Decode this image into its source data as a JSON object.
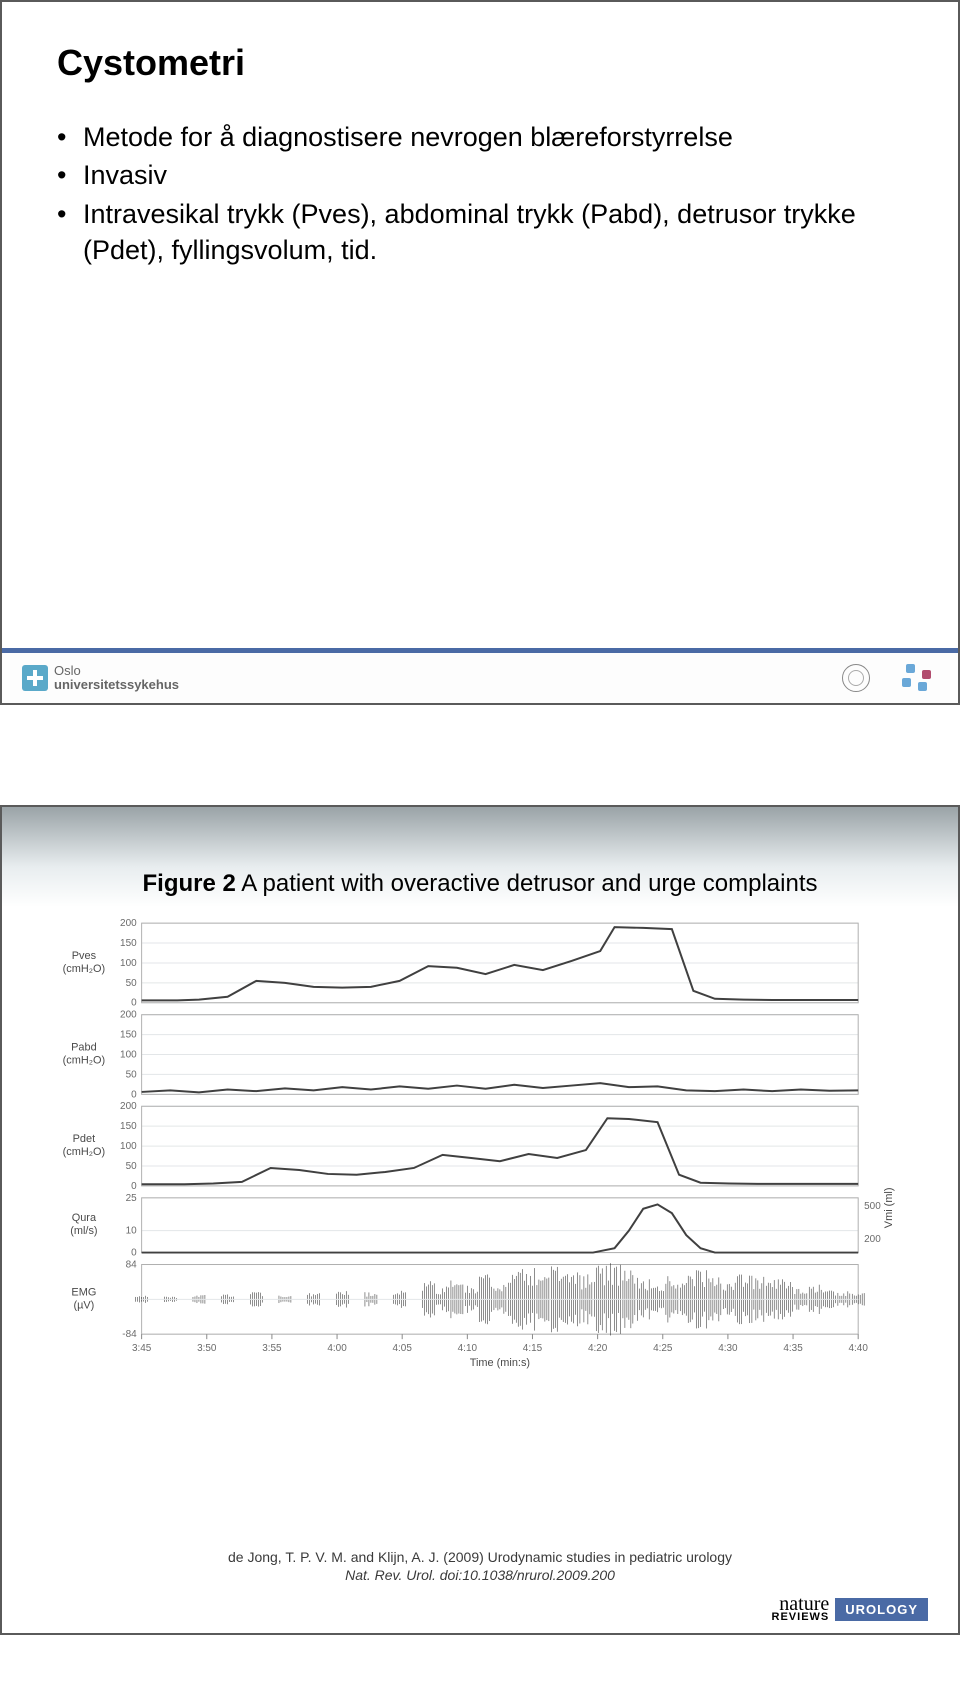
{
  "slide1": {
    "title": "Cystometri",
    "bullets": [
      "Metode for å diagnostisere nevrogen blæreforstyrrelse",
      "Invasiv",
      "Intravesikal trykk (Pves), abdominal trykk (Pabd), detrusor trykke (Pdet), fyllingsvolum, tid."
    ],
    "footer": {
      "org_line1": "Oslo",
      "org_line2": "universitetssykehus",
      "accent_color": "#4a6aa5"
    }
  },
  "slide2": {
    "caption_bold": "Figure 2",
    "caption_rest": " A patient with overactive detrusor and urge complaints",
    "citation_line1": "de Jong, T. P. V. M. and Klijn, A. J. (2009) Urodynamic studies in pediatric urology",
    "citation_line2": "Nat. Rev. Urol. doi:10.1038/nrurol.2009.200",
    "nature": {
      "top": "nature",
      "reviews": "REVIEWS",
      "badge": "UROLOGY"
    },
    "badge_bg": "#4a6aa5",
    "chart": {
      "x_ticks": [
        "3:45",
        "3:50",
        "3:55",
        "4:00",
        "4:05",
        "4:10",
        "4:15",
        "4:20",
        "4:25",
        "4:30",
        "4:35",
        "4:40"
      ],
      "x_label": "Time (min:s)",
      "panels": [
        {
          "ylabel": "Pves (cmH₂O)",
          "range": [
            0,
            200
          ],
          "y_ticks": [
            0,
            50,
            100,
            150,
            200
          ],
          "trace": [
            [
              0,
              6
            ],
            [
              5,
              6
            ],
            [
              8,
              8
            ],
            [
              12,
              15
            ],
            [
              16,
              55
            ],
            [
              20,
              50
            ],
            [
              24,
              40
            ],
            [
              28,
              38
            ],
            [
              32,
              40
            ],
            [
              36,
              55
            ],
            [
              40,
              92
            ],
            [
              44,
              88
            ],
            [
              48,
              72
            ],
            [
              52,
              95
            ],
            [
              56,
              82
            ],
            [
              60,
              105
            ],
            [
              64,
              130
            ],
            [
              66,
              190
            ],
            [
              70,
              188
            ],
            [
              74,
              185
            ],
            [
              77,
              30
            ],
            [
              80,
              10
            ],
            [
              84,
              8
            ],
            [
              88,
              7
            ],
            [
              92,
              7
            ],
            [
              96,
              7
            ],
            [
              100,
              7
            ]
          ],
          "right_axis": null
        },
        {
          "ylabel": "Pabd (cmH₂O)",
          "range": [
            0,
            200
          ],
          "y_ticks": [
            0,
            50,
            100,
            150,
            200
          ],
          "trace": [
            [
              0,
              6
            ],
            [
              4,
              10
            ],
            [
              8,
              5
            ],
            [
              12,
              12
            ],
            [
              16,
              8
            ],
            [
              20,
              15
            ],
            [
              24,
              10
            ],
            [
              28,
              18
            ],
            [
              32,
              12
            ],
            [
              36,
              20
            ],
            [
              40,
              14
            ],
            [
              44,
              22
            ],
            [
              48,
              14
            ],
            [
              52,
              24
            ],
            [
              56,
              16
            ],
            [
              60,
              22
            ],
            [
              64,
              28
            ],
            [
              68,
              18
            ],
            [
              72,
              20
            ],
            [
              76,
              10
            ],
            [
              80,
              8
            ],
            [
              84,
              12
            ],
            [
              88,
              8
            ],
            [
              92,
              12
            ],
            [
              96,
              9
            ],
            [
              100,
              10
            ]
          ],
          "right_axis": null
        },
        {
          "ylabel": "Pdet (cmH₂O)",
          "range": [
            0,
            200
          ],
          "y_ticks": [
            0,
            50,
            100,
            150,
            200
          ],
          "trace": [
            [
              0,
              4
            ],
            [
              6,
              4
            ],
            [
              10,
              6
            ],
            [
              14,
              10
            ],
            [
              18,
              45
            ],
            [
              22,
              40
            ],
            [
              26,
              30
            ],
            [
              30,
              28
            ],
            [
              34,
              35
            ],
            [
              38,
              45
            ],
            [
              42,
              78
            ],
            [
              46,
              70
            ],
            [
              50,
              62
            ],
            [
              54,
              80
            ],
            [
              58,
              70
            ],
            [
              62,
              90
            ],
            [
              65,
              170
            ],
            [
              68,
              168
            ],
            [
              72,
              160
            ],
            [
              75,
              28
            ],
            [
              78,
              8
            ],
            [
              82,
              6
            ],
            [
              86,
              5
            ],
            [
              90,
              5
            ],
            [
              96,
              5
            ],
            [
              100,
              5
            ]
          ],
          "right_axis": null
        },
        {
          "ylabel": "Qura (ml/s)",
          "range": [
            0,
            25
          ],
          "y_ticks": [
            0,
            10,
            25
          ],
          "trace": [
            [
              0,
              0
            ],
            [
              60,
              0
            ],
            [
              63,
              0
            ],
            [
              66,
              2
            ],
            [
              68,
              10
            ],
            [
              70,
              20
            ],
            [
              72,
              22
            ],
            [
              74,
              18
            ],
            [
              76,
              8
            ],
            [
              78,
              2
            ],
            [
              80,
              0
            ],
            [
              100,
              0
            ]
          ],
          "right_axis": {
            "label": "Vmi (ml)",
            "ticks": [
              200,
              500
            ]
          }
        },
        {
          "ylabel": "EMG (µV)",
          "range": [
            -84,
            84
          ],
          "y_ticks": [
            -84,
            84
          ],
          "emg_envelope": [
            [
              0,
              8
            ],
            [
              4,
              6
            ],
            [
              8,
              10
            ],
            [
              12,
              12
            ],
            [
              16,
              18
            ],
            [
              20,
              10
            ],
            [
              24,
              14
            ],
            [
              28,
              20
            ],
            [
              32,
              16
            ],
            [
              36,
              22
            ],
            [
              40,
              40
            ],
            [
              42,
              28
            ],
            [
              44,
              45
            ],
            [
              46,
              32
            ],
            [
              48,
              60
            ],
            [
              50,
              35
            ],
            [
              52,
              62
            ],
            [
              54,
              70
            ],
            [
              56,
              50
            ],
            [
              58,
              75
            ],
            [
              60,
              80
            ],
            [
              62,
              55
            ],
            [
              64,
              78
            ],
            [
              66,
              82
            ],
            [
              68,
              65
            ],
            [
              70,
              50
            ],
            [
              72,
              30
            ],
            [
              74,
              60
            ],
            [
              76,
              55
            ],
            [
              78,
              65
            ],
            [
              80,
              50
            ],
            [
              82,
              40
            ],
            [
              84,
              62
            ],
            [
              86,
              55
            ],
            [
              88,
              48
            ],
            [
              90,
              45
            ],
            [
              92,
              25
            ],
            [
              94,
              35
            ],
            [
              96,
              20
            ],
            [
              98,
              18
            ],
            [
              100,
              15
            ]
          ]
        }
      ]
    }
  }
}
